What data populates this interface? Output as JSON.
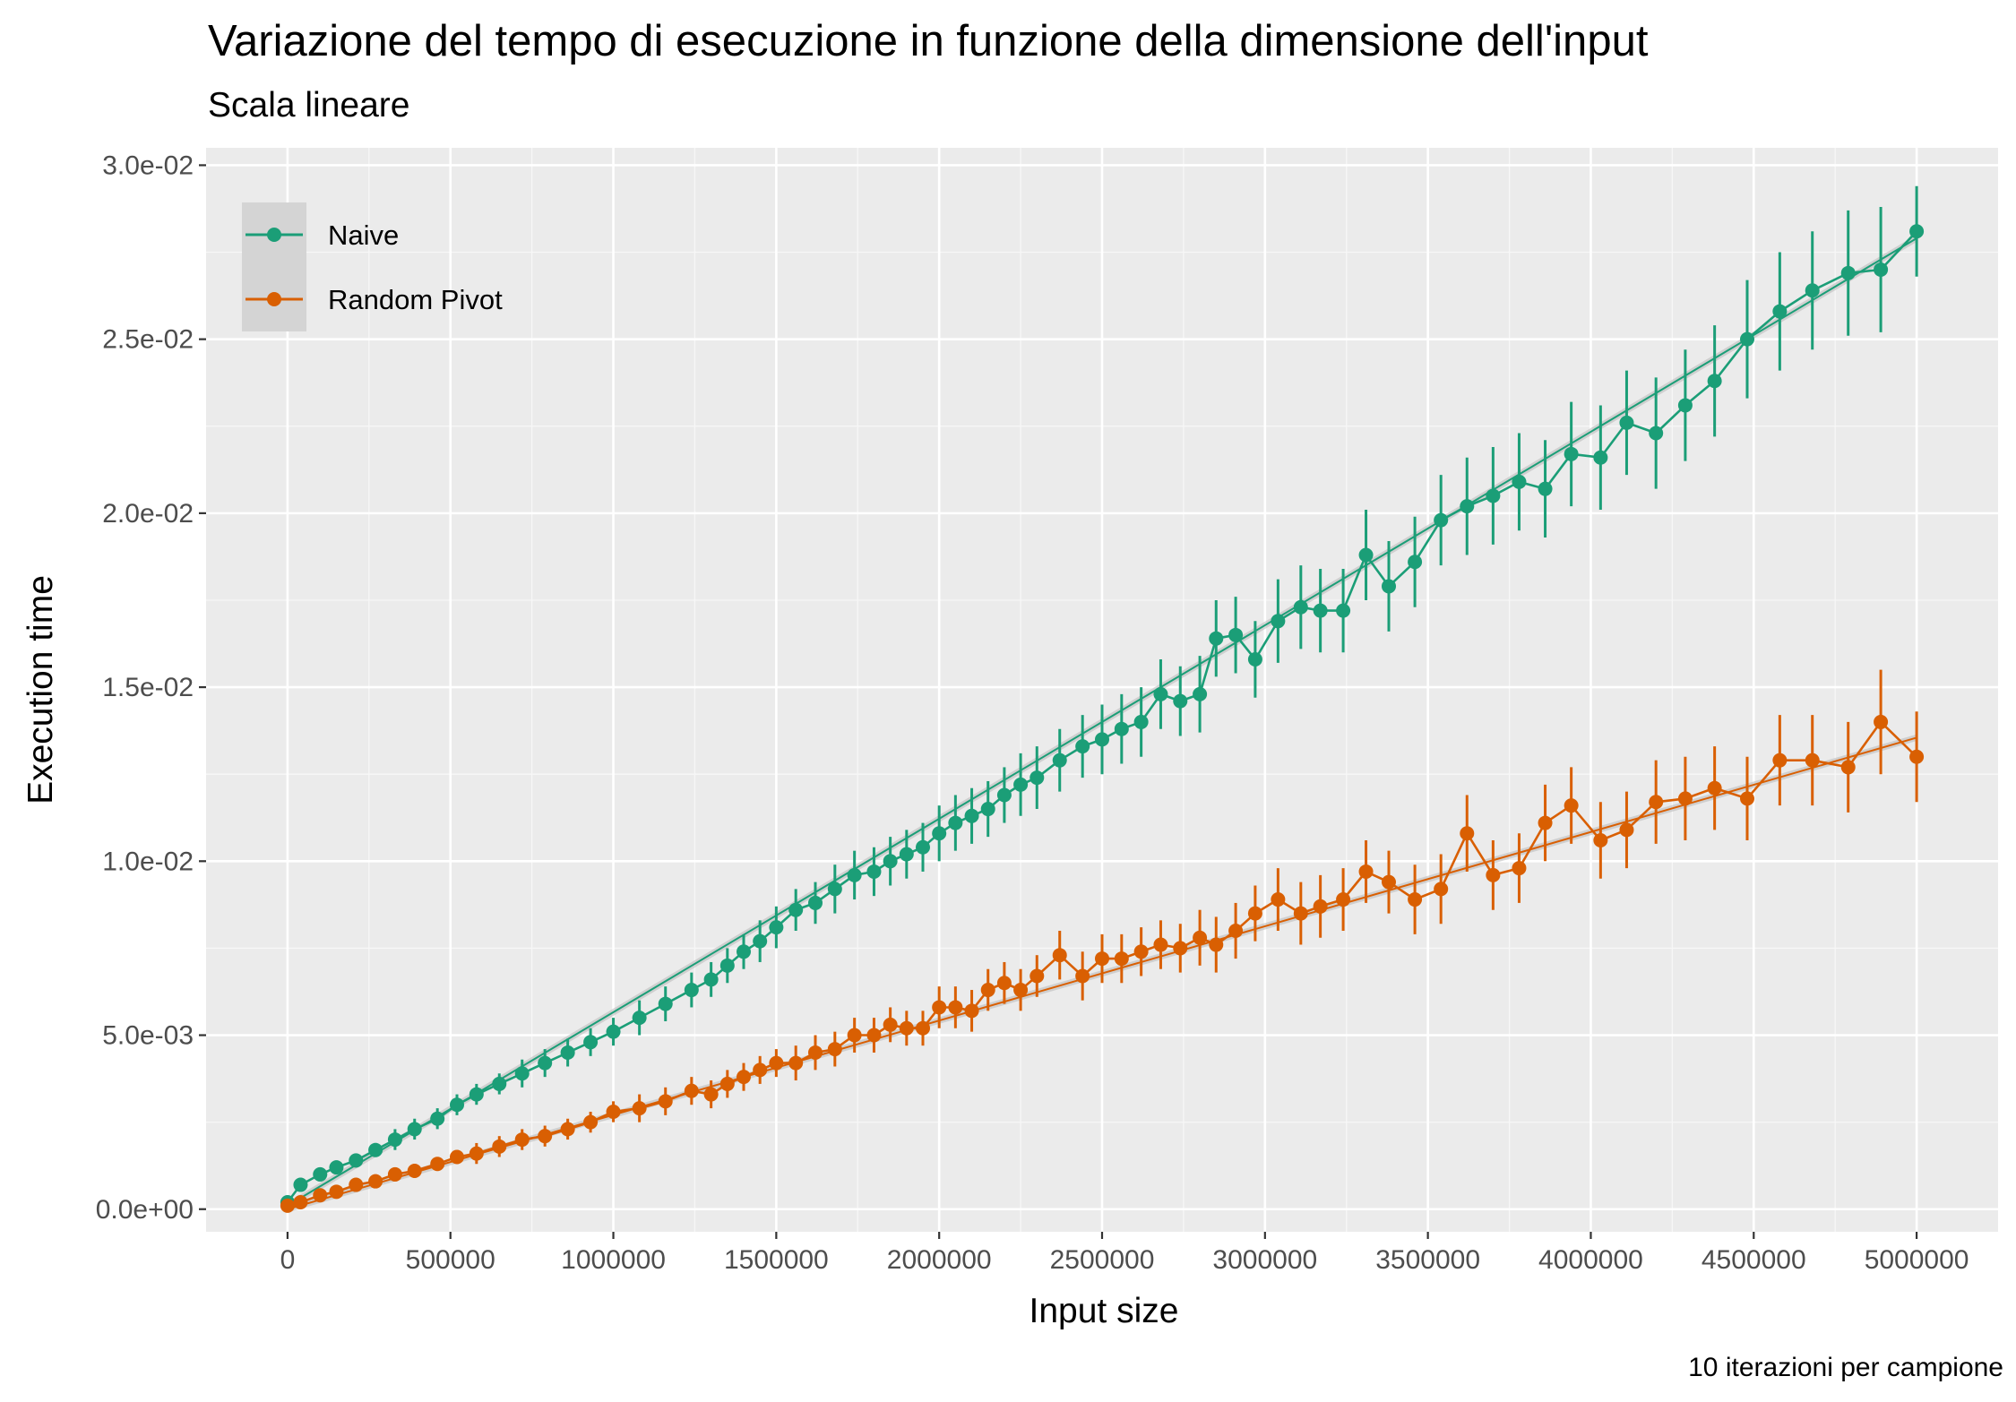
{
  "chart_data": {
    "type": "line",
    "title": "Variazione del tempo di esecuzione in funzione della dimensione dell'input",
    "subtitle": "Scala lineare",
    "xlabel": "Input size",
    "ylabel": "Execution time",
    "caption": "10 iterazioni per campione",
    "xlim": [
      -250000,
      5250000
    ],
    "ylim": [
      -0.00065,
      0.0305
    ],
    "x_ticks": [
      0,
      500000,
      1000000,
      1500000,
      2000000,
      2500000,
      3000000,
      3500000,
      4000000,
      4500000,
      5000000
    ],
    "x_tick_labels": [
      "0",
      "500000",
      "1000000",
      "1500000",
      "2000000",
      "2500000",
      "3000000",
      "3500000",
      "4000000",
      "4500000",
      "5000000"
    ],
    "y_ticks": [
      0,
      0.005,
      0.01,
      0.015,
      0.02,
      0.025,
      0.03
    ],
    "y_tick_labels": [
      "0.0e+00",
      "5.0e-03",
      "1.0e-02",
      "1.5e-02",
      "2.0e-02",
      "2.5e-02",
      "3.0e-02"
    ],
    "grid": true,
    "legend_position": "top-left",
    "series": [
      {
        "name": "Naive",
        "color": "#1b9e77",
        "fit": [
          [
            0,
            0.0001
          ],
          [
            5000000,
            0.0279
          ]
        ],
        "x": [
          0,
          40000,
          100000,
          150000,
          210000,
          270000,
          330000,
          390000,
          460000,
          520000,
          580000,
          650000,
          720000,
          790000,
          860000,
          930000,
          1000000,
          1080000,
          1160000,
          1240000,
          1300000,
          1350000,
          1400000,
          1450000,
          1500000,
          1560000,
          1620000,
          1680000,
          1740000,
          1800000,
          1850000,
          1900000,
          1950000,
          2000000,
          2050000,
          2100000,
          2150000,
          2200000,
          2250000,
          2300000,
          2370000,
          2440000,
          2500000,
          2560000,
          2620000,
          2680000,
          2740000,
          2800000,
          2850000,
          2910000,
          2970000,
          3040000,
          3110000,
          3170000,
          3240000,
          3310000,
          3380000,
          3460000,
          3540000,
          3620000,
          3700000,
          3780000,
          3860000,
          3940000,
          4030000,
          4110000,
          4200000,
          4290000,
          4380000,
          4480000,
          4580000,
          4680000,
          4790000,
          4890000,
          5000000
        ],
        "y": [
          0.0002,
          0.0007,
          0.001,
          0.0012,
          0.0014,
          0.0017,
          0.002,
          0.0023,
          0.0026,
          0.003,
          0.0033,
          0.0036,
          0.0039,
          0.0042,
          0.0045,
          0.0048,
          0.0051,
          0.0055,
          0.0059,
          0.0063,
          0.0066,
          0.007,
          0.0074,
          0.0077,
          0.0081,
          0.0086,
          0.0088,
          0.0092,
          0.0096,
          0.0097,
          0.01,
          0.0102,
          0.0104,
          0.0108,
          0.0111,
          0.0113,
          0.0115,
          0.0119,
          0.0122,
          0.0124,
          0.0129,
          0.0133,
          0.0135,
          0.0138,
          0.014,
          0.0148,
          0.0146,
          0.0148,
          0.0164,
          0.0165,
          0.0158,
          0.0169,
          0.0173,
          0.0172,
          0.0172,
          0.0188,
          0.0179,
          0.0186,
          0.0198,
          0.0202,
          0.0205,
          0.0209,
          0.0207,
          0.0217,
          0.0216,
          0.0226,
          0.0223,
          0.0231,
          0.0238,
          0.025,
          0.0258,
          0.0264,
          0.0269,
          0.027,
          0.0281
        ],
        "err": [
          0.0001,
          0.0002,
          0.0002,
          0.0002,
          0.0002,
          0.0002,
          0.0003,
          0.0003,
          0.0003,
          0.0003,
          0.0003,
          0.0003,
          0.0004,
          0.0004,
          0.0004,
          0.0004,
          0.0004,
          0.0005,
          0.0005,
          0.0005,
          0.0005,
          0.0005,
          0.0005,
          0.0006,
          0.0006,
          0.0006,
          0.0006,
          0.0007,
          0.0007,
          0.0007,
          0.0007,
          0.0007,
          0.0007,
          0.0008,
          0.0008,
          0.0008,
          0.0008,
          0.0008,
          0.0009,
          0.0009,
          0.0009,
          0.0009,
          0.001,
          0.001,
          0.001,
          0.001,
          0.001,
          0.0011,
          0.0011,
          0.0011,
          0.0011,
          0.0012,
          0.0012,
          0.0012,
          0.0012,
          0.0013,
          0.0013,
          0.0013,
          0.0013,
          0.0014,
          0.0014,
          0.0014,
          0.0014,
          0.0015,
          0.0015,
          0.0015,
          0.0016,
          0.0016,
          0.0016,
          0.0017,
          0.0017,
          0.0017,
          0.0018,
          0.0018,
          0.0013
        ]
      },
      {
        "name": "Random Pivot",
        "color": "#d95f02",
        "fit": [
          [
            0,
            0.0
          ],
          [
            5000000,
            0.01355
          ]
        ],
        "x": [
          0,
          40000,
          100000,
          150000,
          210000,
          270000,
          330000,
          390000,
          460000,
          520000,
          580000,
          650000,
          720000,
          790000,
          860000,
          930000,
          1000000,
          1080000,
          1160000,
          1240000,
          1300000,
          1350000,
          1400000,
          1450000,
          1500000,
          1560000,
          1620000,
          1680000,
          1740000,
          1800000,
          1850000,
          1900000,
          1950000,
          2000000,
          2050000,
          2100000,
          2150000,
          2200000,
          2250000,
          2300000,
          2370000,
          2440000,
          2500000,
          2560000,
          2620000,
          2680000,
          2740000,
          2800000,
          2850000,
          2910000,
          2970000,
          3040000,
          3110000,
          3170000,
          3240000,
          3310000,
          3380000,
          3460000,
          3540000,
          3620000,
          3700000,
          3780000,
          3860000,
          3940000,
          4030000,
          4110000,
          4200000,
          4290000,
          4380000,
          4480000,
          4580000,
          4680000,
          4790000,
          4890000,
          5000000
        ],
        "y": [
          0.0001,
          0.0002,
          0.0004,
          0.0005,
          0.0007,
          0.0008,
          0.001,
          0.0011,
          0.0013,
          0.0015,
          0.0016,
          0.0018,
          0.002,
          0.0021,
          0.0023,
          0.0025,
          0.0028,
          0.0029,
          0.0031,
          0.0034,
          0.0033,
          0.0036,
          0.0038,
          0.004,
          0.0042,
          0.0042,
          0.0045,
          0.0046,
          0.005,
          0.005,
          0.0053,
          0.0052,
          0.0052,
          0.0058,
          0.0058,
          0.0057,
          0.0063,
          0.0065,
          0.0063,
          0.0067,
          0.0073,
          0.0067,
          0.0072,
          0.0072,
          0.0074,
          0.0076,
          0.0075,
          0.0078,
          0.0076,
          0.008,
          0.0085,
          0.0089,
          0.0085,
          0.0087,
          0.0089,
          0.0097,
          0.0094,
          0.0089,
          0.0092,
          0.0108,
          0.0096,
          0.0098,
          0.0111,
          0.0116,
          0.0106,
          0.0109,
          0.0117,
          0.0118,
          0.0121,
          0.0118,
          0.0129,
          0.0129,
          0.0127,
          0.014,
          0.013
        ],
        "err": [
          0.0001,
          0.0001,
          0.0001,
          0.0001,
          0.0002,
          0.0002,
          0.0002,
          0.0002,
          0.0002,
          0.0002,
          0.0003,
          0.0003,
          0.0003,
          0.0003,
          0.0003,
          0.0003,
          0.0003,
          0.0004,
          0.0004,
          0.0004,
          0.0004,
          0.0004,
          0.0004,
          0.0004,
          0.0004,
          0.0005,
          0.0005,
          0.0005,
          0.0005,
          0.0005,
          0.0005,
          0.0005,
          0.0005,
          0.0006,
          0.0006,
          0.0006,
          0.0006,
          0.0006,
          0.0006,
          0.0006,
          0.0007,
          0.0007,
          0.0007,
          0.0007,
          0.0007,
          0.0007,
          0.0007,
          0.0008,
          0.0008,
          0.0008,
          0.0008,
          0.0009,
          0.0009,
          0.0009,
          0.0009,
          0.0009,
          0.0009,
          0.001,
          0.001,
          0.0011,
          0.001,
          0.001,
          0.0011,
          0.0011,
          0.0011,
          0.0011,
          0.0012,
          0.0012,
          0.0012,
          0.0012,
          0.0013,
          0.0013,
          0.0013,
          0.0015,
          0.0013
        ]
      }
    ]
  }
}
